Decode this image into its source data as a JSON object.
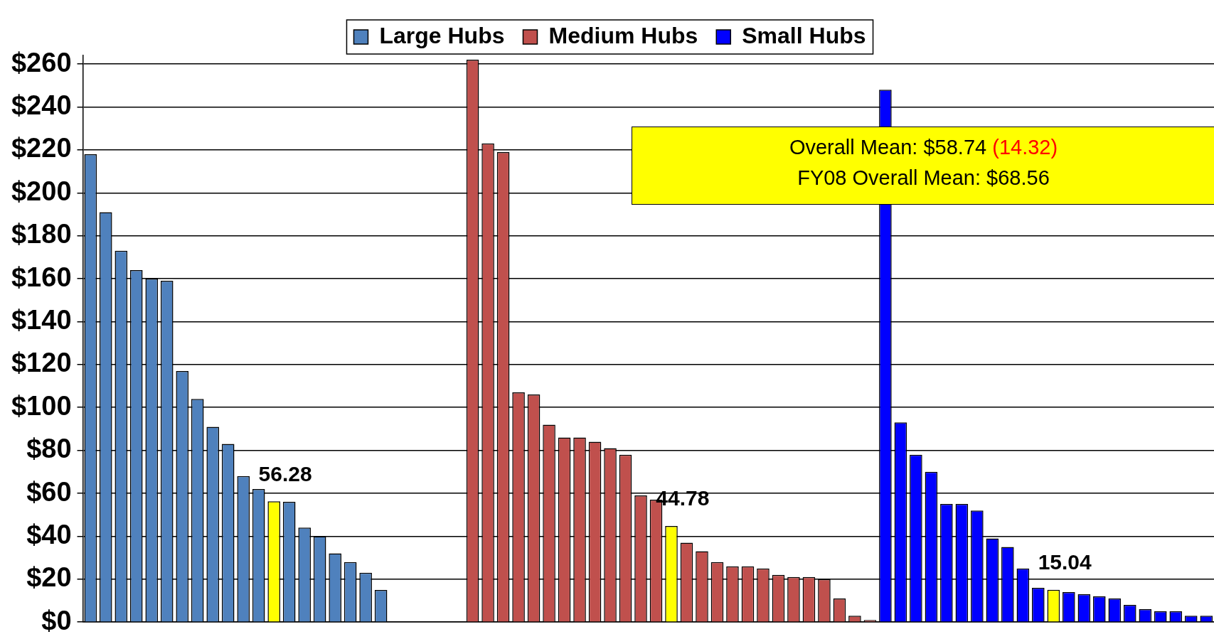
{
  "chart_data": {
    "type": "bar",
    "categories": [
      null,
      null,
      null,
      null,
      null,
      null,
      null,
      null,
      null,
      null,
      null,
      null,
      null,
      null,
      null,
      null,
      null,
      null,
      null,
      null,
      null,
      null,
      null,
      null,
      null,
      null,
      null,
      null,
      null,
      null,
      null,
      null,
      null,
      null,
      null,
      null,
      null,
      null,
      null,
      null,
      null,
      null,
      null,
      null,
      null,
      null,
      null,
      null,
      null,
      null,
      null,
      null,
      null,
      null,
      null,
      null,
      null,
      null,
      null,
      null,
      null,
      null,
      null,
      null,
      null,
      null,
      null,
      null,
      null,
      null,
      null,
      null,
      null,
      null
    ],
    "series": [
      {
        "name": "Large Hubs",
        "color": "#4f81bd",
        "values": [
          218,
          191,
          173,
          164,
          160,
          159,
          117,
          104,
          91,
          83,
          68,
          62,
          56.28,
          56,
          44,
          40,
          32,
          28,
          23,
          15,
          null,
          null,
          null,
          null,
          null,
          null,
          null,
          null,
          null,
          null,
          null,
          null,
          null,
          null,
          null,
          null,
          null,
          null,
          null,
          null,
          null,
          null,
          null,
          null,
          null,
          null,
          null,
          null,
          null,
          null,
          null,
          null,
          null,
          null,
          null,
          null,
          null,
          null,
          null,
          null,
          null,
          null,
          null,
          null,
          null,
          null,
          null,
          null,
          null,
          null,
          null,
          null,
          null,
          null
        ],
        "colors": [
          "#4f81bd",
          "#4f81bd",
          "#4f81bd",
          "#4f81bd",
          "#4f81bd",
          "#4f81bd",
          "#4f81bd",
          "#4f81bd",
          "#4f81bd",
          "#4f81bd",
          "#4f81bd",
          "#4f81bd",
          "#ffff00",
          "#4f81bd",
          "#4f81bd",
          "#4f81bd",
          "#4f81bd",
          "#4f81bd",
          "#4f81bd",
          "#4f81bd",
          null,
          null,
          null,
          null,
          null,
          null,
          null,
          null,
          null,
          null,
          null,
          null,
          null,
          null,
          null,
          null,
          null,
          null,
          null,
          null,
          null,
          null,
          null,
          null,
          null,
          null,
          null,
          null,
          null,
          null,
          null,
          null,
          null,
          null,
          null,
          null,
          null,
          null,
          null,
          null,
          null,
          null,
          null,
          null,
          null,
          null,
          null,
          null,
          null,
          null,
          null,
          null,
          null,
          null
        ],
        "value_labels": [
          null,
          null,
          null,
          null,
          null,
          null,
          null,
          null,
          null,
          null,
          null,
          null,
          "56.28",
          null,
          null,
          null,
          null,
          null,
          null,
          null,
          null,
          null,
          null,
          null,
          null,
          null,
          null,
          null,
          null,
          null,
          null,
          null,
          null,
          null,
          null,
          null,
          null,
          null,
          null,
          null,
          null,
          null,
          null,
          null,
          null,
          null,
          null,
          null,
          null,
          null,
          null,
          null,
          null,
          null,
          null,
          null,
          null,
          null,
          null,
          null,
          null,
          null,
          null,
          null,
          null,
          null,
          null,
          null,
          null,
          null,
          null,
          null,
          null,
          null
        ]
      },
      {
        "name": "Medium Hubs",
        "color": "#c0504d",
        "values": [
          null,
          null,
          null,
          null,
          null,
          null,
          null,
          null,
          null,
          null,
          null,
          null,
          null,
          null,
          null,
          null,
          null,
          null,
          null,
          null,
          null,
          null,
          null,
          null,
          null,
          262,
          223,
          219,
          107,
          106,
          92,
          86,
          86,
          84,
          81,
          78,
          59,
          57,
          44.78,
          37,
          33,
          28,
          26,
          26,
          25,
          22,
          21,
          21,
          20,
          11,
          3,
          1,
          null,
          null,
          null,
          null,
          null,
          null,
          null,
          null,
          null,
          null,
          null,
          null,
          null,
          null,
          null,
          null,
          null,
          null,
          null,
          null,
          null,
          null
        ],
        "colors": [
          null,
          null,
          null,
          null,
          null,
          null,
          null,
          null,
          null,
          null,
          null,
          null,
          null,
          null,
          null,
          null,
          null,
          null,
          null,
          null,
          null,
          null,
          null,
          null,
          null,
          "#c0504d",
          "#c0504d",
          "#c0504d",
          "#c0504d",
          "#c0504d",
          "#c0504d",
          "#c0504d",
          "#c0504d",
          "#c0504d",
          "#c0504d",
          "#c0504d",
          "#c0504d",
          "#c0504d",
          "#ffff00",
          "#c0504d",
          "#c0504d",
          "#c0504d",
          "#c0504d",
          "#c0504d",
          "#c0504d",
          "#c0504d",
          "#c0504d",
          "#c0504d",
          "#c0504d",
          "#c0504d",
          "#c0504d",
          "#c0504d",
          null,
          null,
          null,
          null,
          null,
          null,
          null,
          null,
          null,
          null,
          null,
          null,
          null,
          null,
          null,
          null,
          null,
          null,
          null,
          null,
          null,
          null
        ],
        "value_labels": [
          null,
          null,
          null,
          null,
          null,
          null,
          null,
          null,
          null,
          null,
          null,
          null,
          null,
          null,
          null,
          null,
          null,
          null,
          null,
          null,
          null,
          null,
          null,
          null,
          null,
          null,
          null,
          null,
          null,
          null,
          null,
          null,
          null,
          null,
          null,
          null,
          null,
          null,
          "44.78",
          null,
          null,
          null,
          null,
          null,
          null,
          null,
          null,
          null,
          null,
          null,
          null,
          null,
          null,
          null,
          null,
          null,
          null,
          null,
          null,
          null,
          null,
          null,
          null,
          null,
          null,
          null,
          null,
          null,
          null,
          null,
          null,
          null,
          null,
          null
        ]
      },
      {
        "name": "Small Hubs",
        "color": "#0000ff",
        "values": [
          null,
          null,
          null,
          null,
          null,
          null,
          null,
          null,
          null,
          null,
          null,
          null,
          null,
          null,
          null,
          null,
          null,
          null,
          null,
          null,
          null,
          null,
          null,
          null,
          null,
          null,
          null,
          null,
          null,
          null,
          null,
          null,
          null,
          null,
          null,
          null,
          null,
          null,
          null,
          null,
          null,
          null,
          null,
          null,
          null,
          null,
          null,
          null,
          null,
          null,
          null,
          null,
          248,
          93,
          78,
          70,
          55,
          55,
          52,
          39,
          35,
          25,
          16,
          15.04,
          14,
          13,
          12,
          11,
          8,
          6,
          5,
          5,
          3,
          3
        ],
        "colors": [
          null,
          null,
          null,
          null,
          null,
          null,
          null,
          null,
          null,
          null,
          null,
          null,
          null,
          null,
          null,
          null,
          null,
          null,
          null,
          null,
          null,
          null,
          null,
          null,
          null,
          null,
          null,
          null,
          null,
          null,
          null,
          null,
          null,
          null,
          null,
          null,
          null,
          null,
          null,
          null,
          null,
          null,
          null,
          null,
          null,
          null,
          null,
          null,
          null,
          null,
          null,
          null,
          "#0000ff",
          "#0000ff",
          "#0000ff",
          "#0000ff",
          "#0000ff",
          "#0000ff",
          "#0000ff",
          "#0000ff",
          "#0000ff",
          "#0000ff",
          "#0000ff",
          "#ffff00",
          "#0000ff",
          "#0000ff",
          "#0000ff",
          "#0000ff",
          "#0000ff",
          "#0000ff",
          "#0000ff",
          "#0000ff",
          "#0000ff",
          "#0000ff"
        ],
        "value_labels": [
          null,
          null,
          null,
          null,
          null,
          null,
          null,
          null,
          null,
          null,
          null,
          null,
          null,
          null,
          null,
          null,
          null,
          null,
          null,
          null,
          null,
          null,
          null,
          null,
          null,
          null,
          null,
          null,
          null,
          null,
          null,
          null,
          null,
          null,
          null,
          null,
          null,
          null,
          null,
          null,
          null,
          null,
          null,
          null,
          null,
          null,
          null,
          null,
          null,
          null,
          null,
          null,
          null,
          null,
          null,
          null,
          null,
          null,
          null,
          null,
          null,
          null,
          null,
          "15.04",
          null,
          null,
          null,
          null,
          null,
          null,
          null,
          null,
          null,
          null
        ]
      }
    ],
    "ylim": [
      0,
      264
    ],
    "yticks": [
      {
        "value": 0,
        "label": "$0"
      },
      {
        "value": 20,
        "label": "$20"
      },
      {
        "value": 40,
        "label": "$40"
      },
      {
        "value": 60,
        "label": "$60"
      },
      {
        "value": 80,
        "label": "$80"
      },
      {
        "value": 100,
        "label": "$100"
      },
      {
        "value": 120,
        "label": "$120"
      },
      {
        "value": 140,
        "label": "$140"
      },
      {
        "value": 160,
        "label": "$160"
      },
      {
        "value": 180,
        "label": "$180"
      },
      {
        "value": 200,
        "label": "$200"
      },
      {
        "value": 220,
        "label": "$220"
      },
      {
        "value": 240,
        "label": "$240"
      },
      {
        "value": 260,
        "label": "$260"
      }
    ],
    "grid": "y",
    "legend": "top",
    "tick_labels": "y",
    "annotations": [
      "Overall Mean: $58.74",
      "(14.32)",
      "FY08 Overall Mean: $68.56"
    ]
  }
}
